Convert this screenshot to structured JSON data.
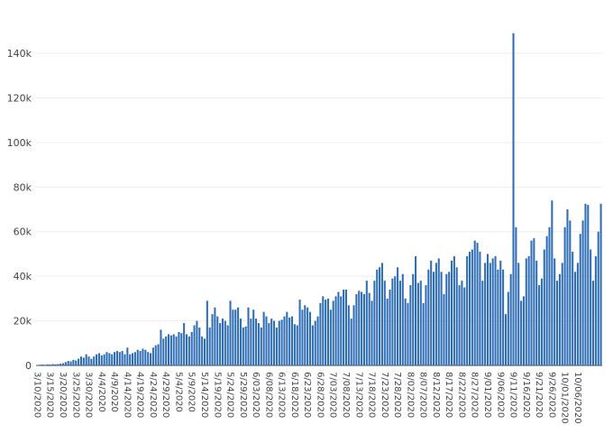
{
  "chart_data": {
    "type": "bar",
    "start_date": "3/10/2020",
    "categories_shown": [
      "3/10/2020",
      "3/15/2020",
      "3/20/2020",
      "3/25/2020",
      "3/30/2020",
      "4/4/2020",
      "4/9/2020",
      "4/14/2020",
      "4/19/2020",
      "4/24/2020",
      "4/29/2020",
      "5/4/2020",
      "5/9/2020",
      "5/14/2020",
      "5/19/2020",
      "5/24/2020",
      "5/29/2020",
      "6/03/2020",
      "6/08/2020",
      "6/13/2020",
      "6/18/2020",
      "6/23/2020",
      "6/28/2020",
      "7/03/2020",
      "7/08/2020",
      "7/13/2020",
      "7/18/2020",
      "7/23/2020",
      "7/28/2020",
      "8/02/2020",
      "8/07/2020",
      "8/12/2020",
      "8/17/2020",
      "8/22/2020",
      "8/27/2020",
      "9/01/2020",
      "9/06/2020",
      "9/11/2020",
      "9/16/2020",
      "9/21/2020",
      "9/26/2020",
      "10/01/2020",
      "10/06/2020"
    ],
    "y_ticks": [
      "0",
      "20k",
      "40k",
      "60k",
      "80k",
      "100k",
      "120k",
      "140k"
    ],
    "ylim": [
      0,
      155000
    ],
    "color": "#2f6eb5",
    "grid": true,
    "values": [
      200,
      300,
      400,
      300,
      500,
      400,
      600,
      500,
      600,
      800,
      1000,
      1500,
      2000,
      1800,
      2500,
      2200,
      3000,
      4000,
      3500,
      5000,
      4000,
      3000,
      4000,
      5000,
      5500,
      4500,
      5000,
      6000,
      5500,
      5000,
      6000,
      6500,
      6000,
      6500,
      5000,
      8000,
      5000,
      5500,
      6000,
      7000,
      6500,
      7500,
      7000,
      6000,
      5500,
      8000,
      9000,
      9500,
      16000,
      12000,
      13000,
      14000,
      13500,
      14000,
      13000,
      15000,
      14500,
      19000,
      14000,
      13000,
      15000,
      18000,
      20000,
      17000,
      13000,
      12000,
      29000,
      17000,
      23000,
      26000,
      22000,
      19000,
      21000,
      20000,
      18000,
      29000,
      25000,
      25000,
      26000,
      21000,
      17000,
      17500,
      26000,
      21000,
      25000,
      21000,
      19000,
      17000,
      24000,
      22000,
      19000,
      21000,
      20000,
      17000,
      20000,
      20500,
      22000,
      24000,
      21500,
      22000,
      18500,
      18000,
      29500,
      25000,
      27000,
      26000,
      24000,
      18000,
      20000,
      22000,
      28000,
      31000,
      29500,
      30000,
      25000,
      29000,
      31000,
      33000,
      31000,
      34000,
      34000,
      27000,
      21000,
      27000,
      32000,
      33500,
      33000,
      32000,
      38000,
      32500,
      29000,
      38000,
      43000,
      44000,
      46000,
      38000,
      30000,
      34000,
      39000,
      40000,
      44000,
      38000,
      41000,
      30000,
      28000,
      36000,
      41000,
      49000,
      37000,
      38000,
      28000,
      36000,
      43000,
      47000,
      42000,
      46000,
      48000,
      42000,
      32000,
      41000,
      42000,
      47000,
      49000,
      44000,
      36000,
      38000,
      35000,
      49000,
      51000,
      52000,
      56000,
      55000,
      51000,
      38000,
      46000,
      50000,
      46000,
      48000,
      49000,
      43000,
      47000,
      43000,
      23000,
      33000,
      41000,
      149000,
      62000,
      46000,
      29000,
      31000,
      48000,
      49000,
      56000,
      57000,
      47000,
      36000,
      39000,
      52000,
      58000,
      62000,
      74000,
      48000,
      38000,
      41000,
      46000,
      62000,
      70000,
      65000,
      51000,
      42000,
      46000,
      59000,
      65000,
      72500,
      72000,
      52000,
      38000,
      49000,
      60000,
      72500
    ]
  }
}
